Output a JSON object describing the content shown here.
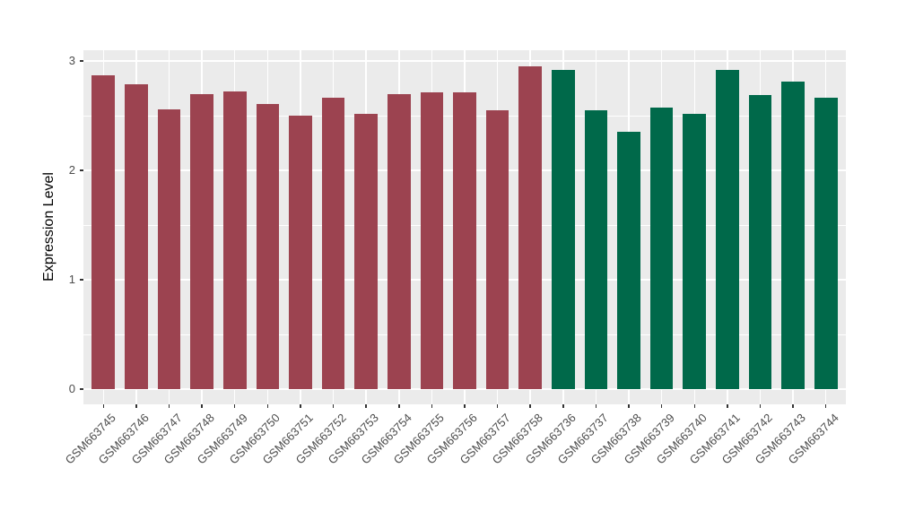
{
  "figure": {
    "background_color": "#ffffff",
    "panel_background_color": "#EBEBEB",
    "gridline_color": "#ffffff",
    "tick_mark_color": "#333333",
    "tick_label_color": "#4D4D4D",
    "axis_title_color": "#000000"
  },
  "chart_data": {
    "type": "bar",
    "title": "",
    "xlabel": "",
    "ylabel": "Expression Level",
    "ylim": [
      0,
      3.1
    ],
    "y_major_ticks": [
      0,
      1,
      2,
      3
    ],
    "y_minor_ticks": [
      0.5,
      1.5,
      2.5
    ],
    "y_tick_labels": [
      "0",
      "1",
      "2",
      "3"
    ],
    "grid": true,
    "legend": false,
    "categories": [
      "GSM663745",
      "GSM663746",
      "GSM663747",
      "GSM663748",
      "GSM663749",
      "GSM663750",
      "GSM663751",
      "GSM663752",
      "GSM663753",
      "GSM663754",
      "GSM663755",
      "GSM663756",
      "GSM663757",
      "GSM663758",
      "GSM663736",
      "GSM663737",
      "GSM663738",
      "GSM663739",
      "GSM663740",
      "GSM663741",
      "GSM663742",
      "GSM663743",
      "GSM663744"
    ],
    "values": [
      2.87,
      2.79,
      2.56,
      2.7,
      2.72,
      2.61,
      2.5,
      2.66,
      2.52,
      2.7,
      2.71,
      2.71,
      2.55,
      2.95,
      2.92,
      2.55,
      2.35,
      2.57,
      2.52,
      2.92,
      2.69,
      2.81,
      2.66
    ],
    "groups": [
      "group1",
      "group1",
      "group1",
      "group1",
      "group1",
      "group1",
      "group1",
      "group1",
      "group1",
      "group1",
      "group1",
      "group1",
      "group1",
      "group1",
      "group2",
      "group2",
      "group2",
      "group2",
      "group2",
      "group2",
      "group2",
      "group2",
      "group2"
    ],
    "group_colors": {
      "group1": "#9C4350",
      "group2": "#00694A"
    }
  }
}
